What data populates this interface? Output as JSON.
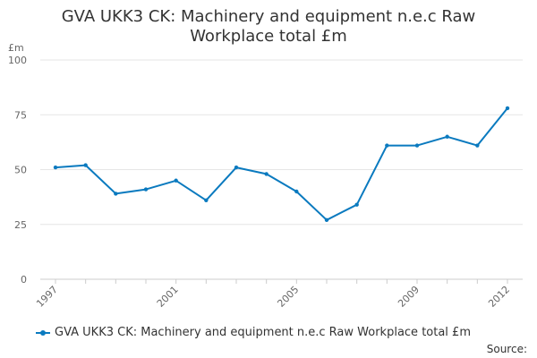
{
  "chart_data": {
    "type": "line",
    "title_line1": "GVA UKK3 CK: Machinery and equipment n.e.c Raw",
    "title_line2": "Workplace total £m",
    "y_unit": "£m",
    "x": [
      1997,
      1998,
      1999,
      2000,
      2001,
      2002,
      2003,
      2004,
      2005,
      2006,
      2007,
      2008,
      2009,
      2010,
      2011,
      2012
    ],
    "x_tick_labels": [
      "1997",
      "2001",
      "2005",
      "2009",
      "2012"
    ],
    "y_ticks": [
      0,
      25,
      50,
      75,
      100
    ],
    "ylim": [
      0,
      100
    ],
    "grid": true,
    "legend_position": "bottom-left",
    "series": [
      {
        "name": "GVA UKK3 CK: Machinery and equipment n.e.c Raw Workplace total £m",
        "color": "#0a7abf",
        "values": [
          51,
          52,
          39,
          41,
          45,
          36,
          51,
          48,
          40,
          27,
          34,
          61,
          61,
          65,
          61,
          78
        ]
      }
    ],
    "source_label": "Source:"
  }
}
